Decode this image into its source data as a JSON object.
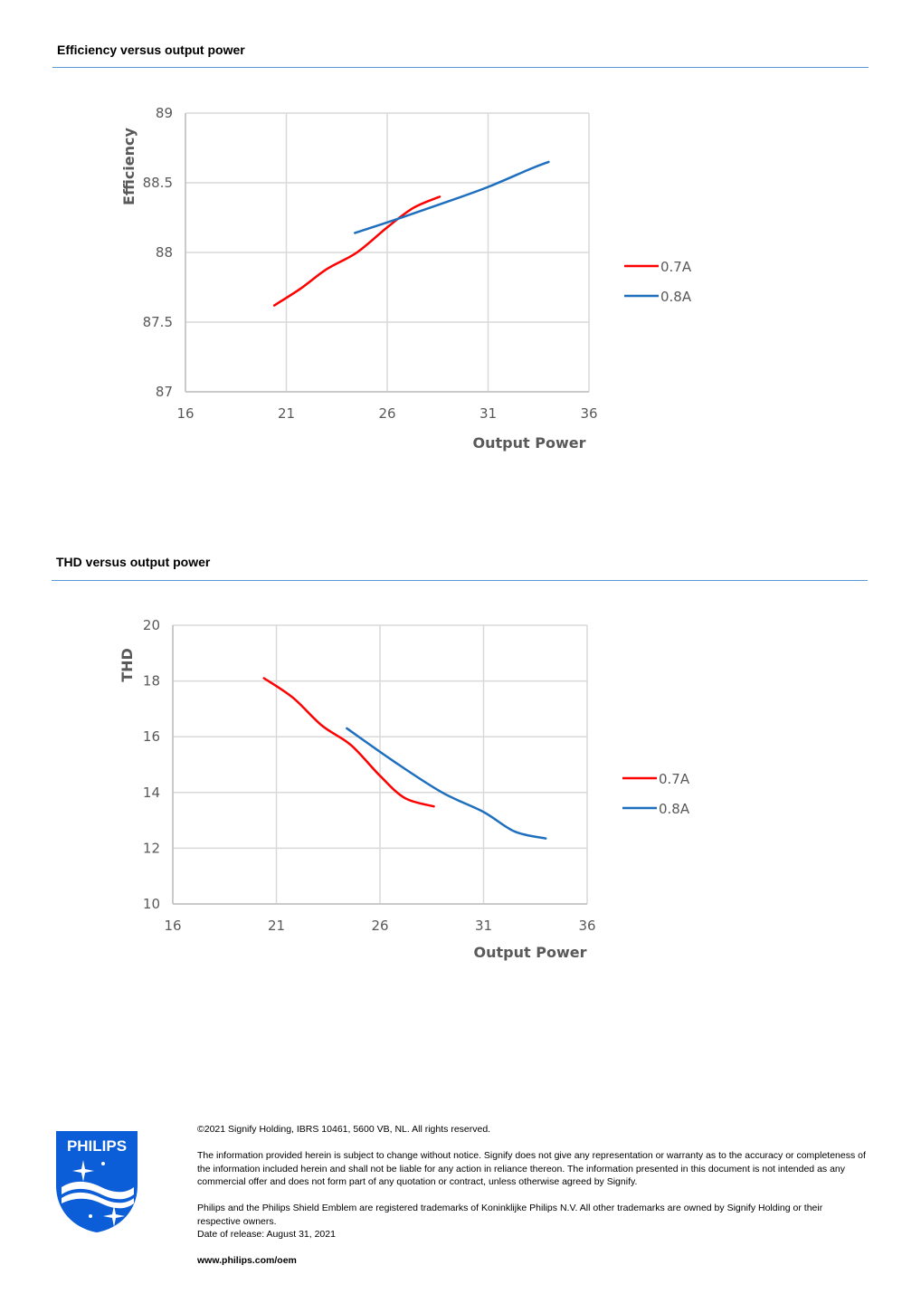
{
  "sections": [
    {
      "title": "Efficiency versus output power"
    },
    {
      "title": "THD versus output power"
    }
  ],
  "chart_data": [
    {
      "type": "line",
      "ylabel": "Efficiency",
      "xlabel": "Output Power",
      "xlim": [
        16,
        36
      ],
      "ylim": [
        87,
        89
      ],
      "xticks": [
        16,
        21,
        26,
        31,
        36
      ],
      "yticks": [
        87,
        87.5,
        88,
        88.5,
        89
      ],
      "ytick_labels": [
        "87",
        "87.5",
        "88",
        "88.5",
        "89"
      ],
      "grid": true,
      "legend": "right",
      "series": [
        {
          "name": "0.7A",
          "color": "#ff0000",
          "x": [
            20.4,
            21.7,
            23.0,
            24.5,
            26.0,
            27.3,
            28.6
          ],
          "y": [
            87.62,
            87.74,
            87.88,
            88.0,
            88.18,
            88.32,
            88.4
          ]
        },
        {
          "name": "0.8A",
          "color": "#1f6fbf",
          "x": [
            24.4,
            26.5,
            28.7,
            31.0,
            33.1,
            34.0
          ],
          "y": [
            88.14,
            88.24,
            88.35,
            88.47,
            88.6,
            88.65
          ]
        }
      ]
    },
    {
      "type": "line",
      "ylabel": "THD",
      "xlabel": "Output Power",
      "xlim": [
        16,
        36
      ],
      "ylim": [
        10,
        20
      ],
      "xticks": [
        16,
        21,
        26,
        31,
        36
      ],
      "yticks": [
        10,
        12,
        14,
        16,
        18,
        20
      ],
      "ytick_labels": [
        "10",
        "12",
        "14",
        "16",
        "18",
        "20"
      ],
      "grid": true,
      "legend": "right",
      "series": [
        {
          "name": "0.7A",
          "color": "#ff0000",
          "x": [
            20.4,
            21.8,
            23.2,
            24.6,
            26.0,
            27.2,
            28.6
          ],
          "y": [
            18.1,
            17.4,
            16.4,
            15.7,
            14.6,
            13.8,
            13.5
          ]
        },
        {
          "name": "0.8A",
          "color": "#1f6fbf",
          "x": [
            24.4,
            26.7,
            29.0,
            31.0,
            32.5,
            34.0
          ],
          "y": [
            16.3,
            15.1,
            14.0,
            13.3,
            12.6,
            12.35
          ]
        }
      ]
    }
  ],
  "footer": {
    "copyright": "©2021 Signify Holding, IBRS 10461, 5600 VB, NL. All rights reserved.",
    "disclaimer": "The information provided herein is subject to change without notice. Signify does not give any representation or warranty as to the accuracy or completeness of the information included herein and shall not be liable for any action in reliance thereon. The information presented in this document is not intended as any commercial offer and does not form part of any quotation or contract, unless otherwise agreed by Signify.",
    "trademark": "Philips and the Philips Shield Emblem are registered trademarks of Koninklijke Philips N.V. All other trademarks are owned by Signify Holding or their respective owners.",
    "release": "Date of release: August 31, 2021",
    "url": "www.philips.com/oem"
  },
  "logo": {
    "text": "PHILIPS",
    "color": "#0b5ed7"
  }
}
